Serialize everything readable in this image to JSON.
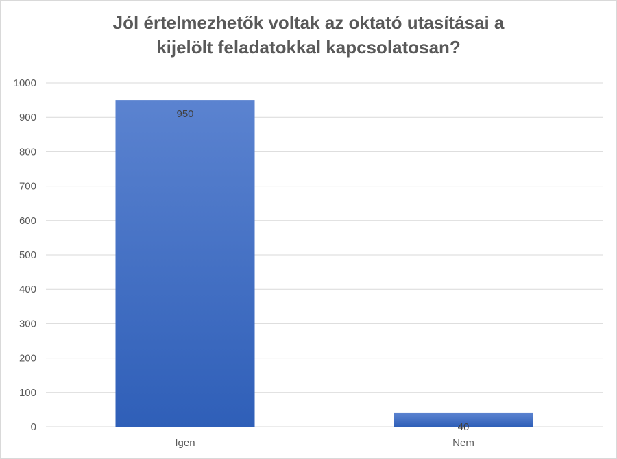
{
  "chart_data": {
    "type": "bar",
    "title_lines": [
      "Jól értelmezhetők voltak az oktató utasításai a",
      "kijelölt feladatokkal kapcsolatosan?"
    ],
    "title": "Jól értelmezhetők voltak az oktató utasításai a kijelölt feladatokkal kapcsolatosan?",
    "categories": [
      "Igen",
      "Nem"
    ],
    "values": [
      950,
      40
    ],
    "data_labels": [
      "950",
      "40"
    ],
    "ylim": [
      0,
      1000
    ],
    "yticks": [
      0,
      100,
      200,
      300,
      400,
      500,
      600,
      700,
      800,
      900,
      1000
    ],
    "ytick_labels": [
      "0",
      "100",
      "200",
      "300",
      "400",
      "500",
      "600",
      "700",
      "800",
      "900",
      "1000"
    ],
    "grid": true,
    "legend": "none",
    "colors": {
      "bar_top": "#5b83d0",
      "bar_bottom": "#2f5fb8",
      "grid": "#d9d9d9",
      "text": "#595959"
    }
  }
}
